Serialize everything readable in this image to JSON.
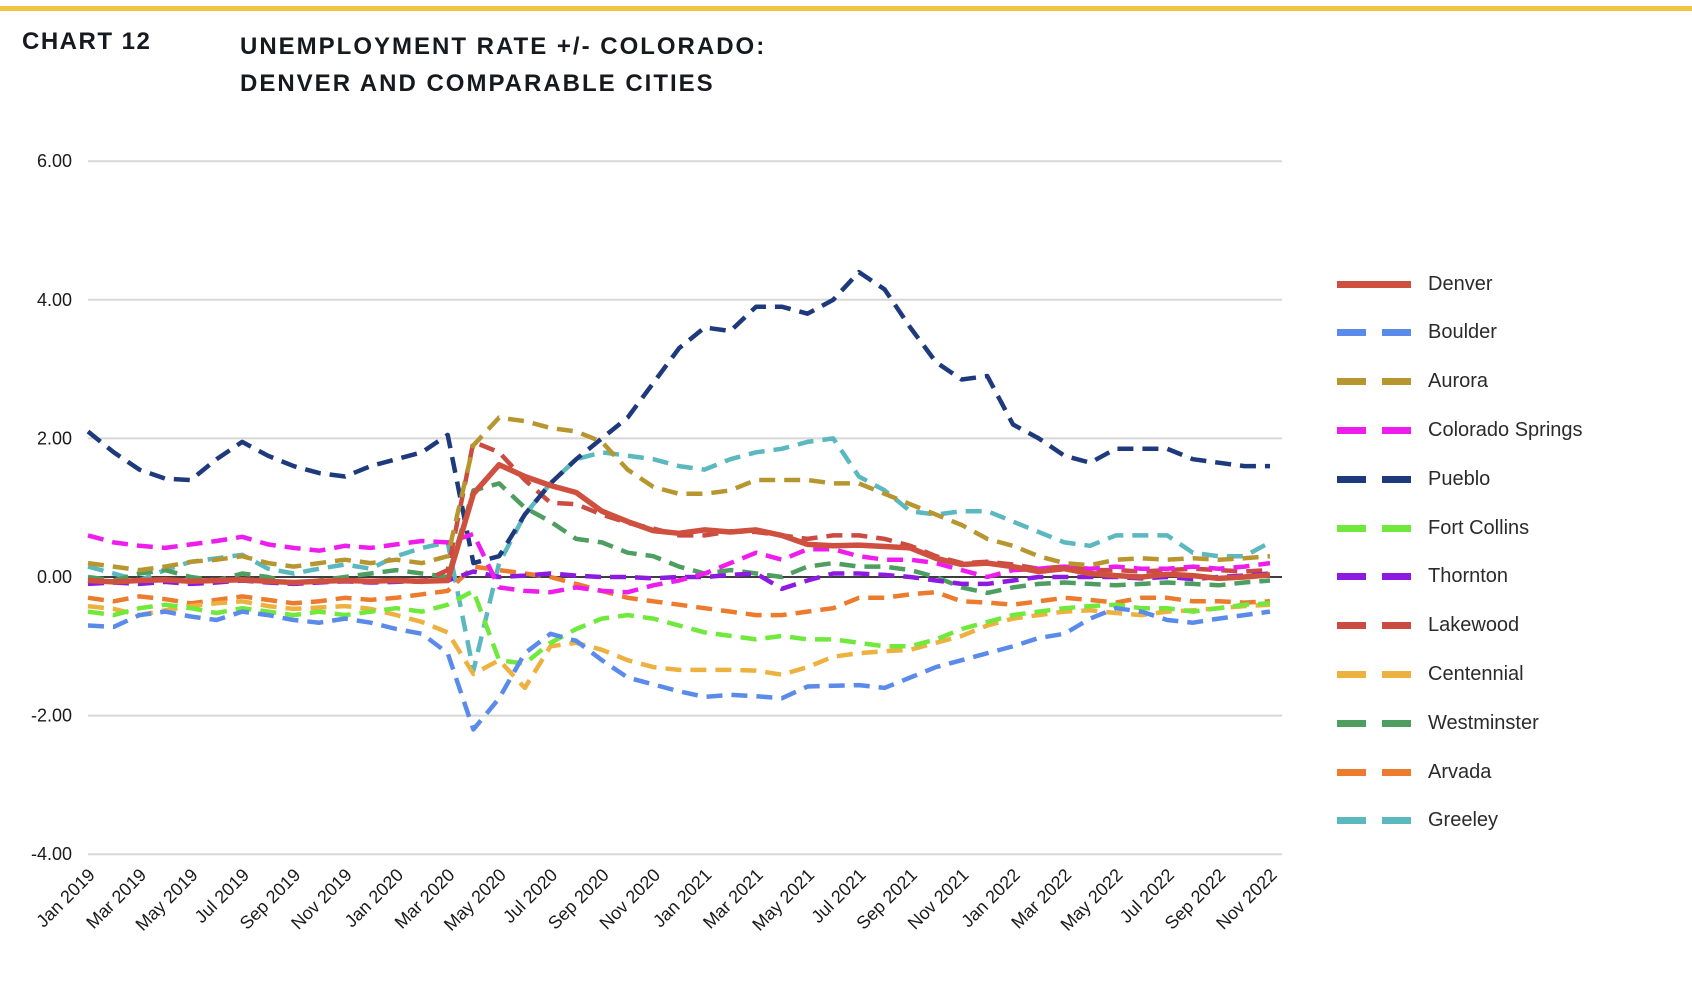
{
  "page": {
    "top_border_color": "#F0C545",
    "background": "#ffffff"
  },
  "header": {
    "chart_label": "CHART 12",
    "title_line1": "UNEMPLOYMENT RATE +/- COLORADO:",
    "title_line2": "DENVER AND COMPARABLE CITIES"
  },
  "chart_data": {
    "type": "line",
    "title": "UNEMPLOYMENT RATE +/- COLORADO: DENVER AND COMPARABLE CITIES",
    "xlabel": "",
    "ylabel": "",
    "ylim": [
      -4,
      6
    ],
    "grid": "horizontal",
    "legend_position": "right",
    "zero_line": true,
    "y_ticks": [
      6,
      4,
      2,
      0,
      -2,
      -4
    ],
    "y_tick_labels": [
      "6.00",
      "4.00",
      "2.00",
      "0.00",
      "-2.00",
      "-4.00"
    ],
    "x_tick_labels": [
      "Jan 2019",
      "Mar 2019",
      "May 2019",
      "Jul 2019",
      "Sep 2019",
      "Nov 2019",
      "Jan 2020",
      "Mar 2020",
      "May 2020",
      "Jul 2020",
      "Sep 2020",
      "Nov 2020",
      "Jan 2021",
      "Mar 2021",
      "May 2021",
      "Jul 2021",
      "Sep 2021",
      "Nov 2021",
      "Jan 2022",
      "Mar 2022",
      "May 2022",
      "Jul 2022",
      "Sep 2022",
      "Nov 2022"
    ],
    "x": [
      "Jan 2019",
      "Feb 2019",
      "Mar 2019",
      "Apr 2019",
      "May 2019",
      "Jun 2019",
      "Jul 2019",
      "Aug 2019",
      "Sep 2019",
      "Oct 2019",
      "Nov 2019",
      "Dec 2019",
      "Jan 2020",
      "Feb 2020",
      "Mar 2020",
      "Apr 2020",
      "May 2020",
      "Jun 2020",
      "Jul 2020",
      "Aug 2020",
      "Sep 2020",
      "Oct 2020",
      "Nov 2020",
      "Dec 2020",
      "Jan 2021",
      "Feb 2021",
      "Mar 2021",
      "Apr 2021",
      "May 2021",
      "Jun 2021",
      "Jul 2021",
      "Aug 2021",
      "Sep 2021",
      "Oct 2021",
      "Nov 2021",
      "Dec 2021",
      "Jan 2022",
      "Feb 2022",
      "Mar 2022",
      "Apr 2022",
      "May 2022",
      "Jun 2022",
      "Jul 2022",
      "Aug 2022",
      "Sep 2022",
      "Oct 2022",
      "Nov 2022"
    ],
    "series": [
      {
        "name": "Denver",
        "color": "#D0503F",
        "dash": "solid",
        "values": [
          -0.05,
          -0.07,
          -0.05,
          -0.04,
          -0.06,
          -0.05,
          -0.04,
          -0.06,
          -0.08,
          -0.06,
          -0.05,
          -0.06,
          -0.05,
          -0.06,
          -0.05,
          1.2,
          1.62,
          1.45,
          1.32,
          1.22,
          0.95,
          0.8,
          0.67,
          0.63,
          0.68,
          0.65,
          0.68,
          0.6,
          0.47,
          0.45,
          0.46,
          0.44,
          0.42,
          0.27,
          0.18,
          0.2,
          0.15,
          0.08,
          0.12,
          0.05,
          0.02,
          0.0,
          0.04,
          0.02,
          -0.02,
          0.0,
          0.03
        ]
      },
      {
        "name": "Boulder",
        "color": "#5B8BEA",
        "dash": "dashed",
        "values": [
          -0.7,
          -0.72,
          -0.55,
          -0.5,
          -0.57,
          -0.62,
          -0.5,
          -0.55,
          -0.62,
          -0.66,
          -0.6,
          -0.66,
          -0.75,
          -0.82,
          -1.1,
          -2.2,
          -1.75,
          -1.1,
          -0.82,
          -0.92,
          -1.2,
          -1.45,
          -1.55,
          -1.65,
          -1.73,
          -1.7,
          -1.72,
          -1.75,
          -1.58,
          -1.57,
          -1.56,
          -1.6,
          -1.45,
          -1.3,
          -1.2,
          -1.1,
          -1.0,
          -0.88,
          -0.82,
          -0.6,
          -0.45,
          -0.5,
          -0.62,
          -0.66,
          -0.6,
          -0.55,
          -0.5
        ]
      },
      {
        "name": "Aurora",
        "color": "#B8962F",
        "dash": "dashed",
        "values": [
          0.2,
          0.15,
          0.1,
          0.15,
          0.22,
          0.25,
          0.3,
          0.2,
          0.15,
          0.2,
          0.25,
          0.2,
          0.25,
          0.2,
          0.3,
          1.9,
          2.3,
          2.25,
          2.15,
          2.1,
          1.95,
          1.55,
          1.3,
          1.2,
          1.2,
          1.25,
          1.4,
          1.4,
          1.4,
          1.35,
          1.35,
          1.2,
          1.05,
          0.9,
          0.75,
          0.55,
          0.45,
          0.3,
          0.2,
          0.17,
          0.25,
          0.27,
          0.25,
          0.27,
          0.25,
          0.27,
          0.3
        ]
      },
      {
        "name": "Colorado Springs",
        "color": "#EE1DEE",
        "dash": "dashed",
        "values": [
          0.6,
          0.5,
          0.45,
          0.42,
          0.47,
          0.52,
          0.58,
          0.47,
          0.42,
          0.38,
          0.45,
          0.42,
          0.47,
          0.52,
          0.5,
          0.62,
          -0.15,
          -0.2,
          -0.22,
          -0.15,
          -0.2,
          -0.22,
          -0.12,
          -0.05,
          0.05,
          0.2,
          0.35,
          0.25,
          0.4,
          0.4,
          0.3,
          0.25,
          0.25,
          0.2,
          0.1,
          0.0,
          0.1,
          0.12,
          0.15,
          0.12,
          0.15,
          0.12,
          0.12,
          0.15,
          0.12,
          0.15,
          0.2
        ]
      },
      {
        "name": "Pueblo",
        "color": "#1E3A7D",
        "dash": "dashed",
        "values": [
          2.1,
          1.8,
          1.55,
          1.42,
          1.4,
          1.7,
          1.95,
          1.75,
          1.6,
          1.5,
          1.45,
          1.6,
          1.7,
          1.8,
          2.05,
          0.2,
          0.3,
          0.9,
          1.35,
          1.7,
          2.0,
          2.3,
          2.8,
          3.3,
          3.6,
          3.55,
          3.9,
          3.9,
          3.8,
          4.0,
          4.4,
          4.15,
          3.6,
          3.1,
          2.85,
          2.9,
          2.2,
          2.0,
          1.75,
          1.65,
          1.85,
          1.85,
          1.85,
          1.7,
          1.65,
          1.6,
          1.6
        ]
      },
      {
        "name": "Fort Collins",
        "color": "#6FE93C",
        "dash": "dashed",
        "values": [
          -0.5,
          -0.55,
          -0.45,
          -0.4,
          -0.45,
          -0.52,
          -0.45,
          -0.5,
          -0.55,
          -0.5,
          -0.55,
          -0.5,
          -0.45,
          -0.5,
          -0.4,
          -0.2,
          -1.2,
          -1.25,
          -0.95,
          -0.75,
          -0.6,
          -0.55,
          -0.6,
          -0.7,
          -0.8,
          -0.85,
          -0.9,
          -0.85,
          -0.9,
          -0.9,
          -0.95,
          -1.0,
          -1.0,
          -0.9,
          -0.75,
          -0.65,
          -0.55,
          -0.5,
          -0.45,
          -0.42,
          -0.4,
          -0.45,
          -0.45,
          -0.5,
          -0.45,
          -0.4,
          -0.38
        ]
      },
      {
        "name": "Thornton",
        "color": "#8C1AE0",
        "dash": "dashed",
        "values": [
          -0.1,
          -0.08,
          -0.1,
          -0.07,
          -0.1,
          -0.08,
          -0.05,
          -0.08,
          -0.1,
          -0.08,
          -0.06,
          -0.08,
          -0.07,
          -0.05,
          -0.05,
          0.08,
          0.0,
          0.02,
          0.05,
          0.02,
          0.0,
          0.0,
          -0.02,
          0.0,
          0.0,
          0.03,
          0.05,
          -0.17,
          -0.05,
          0.05,
          0.05,
          0.03,
          0.0,
          -0.05,
          -0.1,
          -0.1,
          -0.05,
          0.0,
          0.0,
          0.0,
          0.0,
          -0.02,
          0.0,
          -0.03,
          0.0,
          0.02,
          0.05
        ]
      },
      {
        "name": "Lakewood",
        "color": "#CB4A41",
        "dash": "dashed",
        "values": [
          -0.05,
          -0.08,
          -0.06,
          -0.05,
          -0.07,
          -0.06,
          -0.05,
          -0.07,
          -0.09,
          -0.07,
          -0.06,
          -0.07,
          -0.06,
          -0.07,
          0.1,
          1.95,
          1.8,
          1.4,
          1.07,
          1.05,
          0.9,
          0.78,
          0.7,
          0.6,
          0.6,
          0.66,
          0.65,
          0.6,
          0.55,
          0.6,
          0.6,
          0.55,
          0.45,
          0.3,
          0.2,
          0.22,
          0.18,
          0.12,
          0.15,
          0.1,
          0.1,
          0.08,
          0.1,
          0.12,
          0.1,
          0.08,
          0.1
        ]
      },
      {
        "name": "Centennial",
        "color": "#EDB140",
        "dash": "dashed",
        "values": [
          -0.42,
          -0.46,
          -0.55,
          -0.48,
          -0.42,
          -0.38,
          -0.35,
          -0.42,
          -0.46,
          -0.44,
          -0.42,
          -0.46,
          -0.55,
          -0.65,
          -0.8,
          -1.4,
          -1.2,
          -1.6,
          -1.0,
          -0.95,
          -1.05,
          -1.2,
          -1.3,
          -1.34,
          -1.34,
          -1.34,
          -1.35,
          -1.41,
          -1.3,
          -1.15,
          -1.1,
          -1.07,
          -1.05,
          -0.95,
          -0.85,
          -0.7,
          -0.6,
          -0.55,
          -0.5,
          -0.48,
          -0.52,
          -0.55,
          -0.5,
          -0.48,
          -0.45,
          -0.42,
          -0.4
        ]
      },
      {
        "name": "Westminster",
        "color": "#4D9E60",
        "dash": "dashed",
        "values": [
          0.0,
          -0.05,
          0.05,
          0.1,
          0.0,
          -0.05,
          0.05,
          0.0,
          -0.1,
          -0.05,
          0.0,
          0.05,
          0.1,
          0.05,
          0.0,
          1.25,
          1.35,
          1.0,
          0.8,
          0.55,
          0.5,
          0.35,
          0.3,
          0.15,
          0.05,
          0.1,
          0.05,
          0.0,
          0.15,
          0.2,
          0.15,
          0.15,
          0.1,
          0.0,
          -0.15,
          -0.23,
          -0.15,
          -0.1,
          -0.08,
          -0.1,
          -0.12,
          -0.1,
          -0.08,
          -0.1,
          -0.12,
          -0.08,
          -0.05
        ]
      },
      {
        "name": "Arvada",
        "color": "#ED7B2E",
        "dash": "dashed",
        "values": [
          -0.3,
          -0.35,
          -0.28,
          -0.32,
          -0.38,
          -0.33,
          -0.28,
          -0.33,
          -0.38,
          -0.35,
          -0.3,
          -0.33,
          -0.3,
          -0.25,
          -0.2,
          0.15,
          0.1,
          0.05,
          0.0,
          -0.1,
          -0.2,
          -0.3,
          -0.35,
          -0.4,
          -0.45,
          -0.5,
          -0.55,
          -0.55,
          -0.5,
          -0.45,
          -0.3,
          -0.3,
          -0.25,
          -0.22,
          -0.35,
          -0.37,
          -0.4,
          -0.35,
          -0.3,
          -0.33,
          -0.37,
          -0.3,
          -0.3,
          -0.35,
          -0.35,
          -0.37,
          -0.35
        ]
      },
      {
        "name": "Greeley",
        "color": "#5BB8BF",
        "dash": "dashed",
        "values": [
          0.15,
          0.05,
          -0.05,
          0.1,
          0.22,
          0.27,
          0.32,
          0.12,
          0.05,
          0.12,
          0.18,
          0.12,
          0.3,
          0.42,
          0.5,
          -1.35,
          0.2,
          0.9,
          1.35,
          1.7,
          1.8,
          1.75,
          1.7,
          1.6,
          1.55,
          1.7,
          1.8,
          1.85,
          1.95,
          2.0,
          1.45,
          1.25,
          0.95,
          0.9,
          0.95,
          0.95,
          0.8,
          0.65,
          0.5,
          0.45,
          0.6,
          0.6,
          0.6,
          0.35,
          0.3,
          0.3,
          0.5
        ]
      }
    ],
    "axis_color": "#1a1a1a",
    "gridline_color": "#d8d8d8",
    "zero_line_color": "#3d3d3d"
  },
  "layout_hint": {
    "note": "monthly data Jan 2019 - Nov 2022, labels every 2 months"
  }
}
